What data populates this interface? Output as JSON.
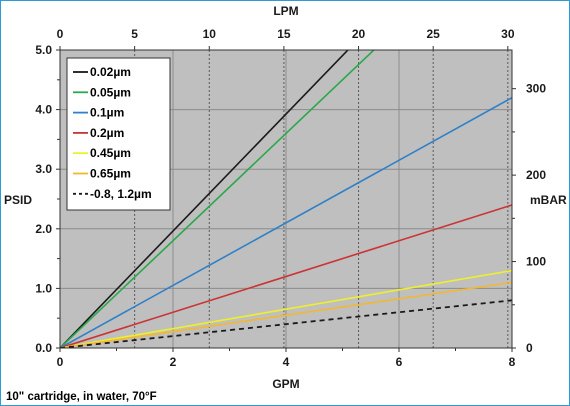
{
  "chart_data": {
    "type": "line",
    "x_bottom_label": "GPM",
    "x_top_label": "LPM",
    "y_left_label": "PSID",
    "y_right_label": "mBAR",
    "xlim": [
      0,
      8
    ],
    "ylim": [
      0,
      5
    ],
    "x_ticks": [
      "0",
      "2",
      "4",
      "6",
      "8"
    ],
    "y_ticks": [
      "0.0",
      "1.0",
      "2.0",
      "3.0",
      "4.0",
      "5.0"
    ],
    "top_ticks": [
      {
        "label": "0",
        "value": 0
      },
      {
        "label": "5",
        "value": 5
      },
      {
        "label": "10",
        "value": 10
      },
      {
        "label": "15",
        "value": 15
      },
      {
        "label": "20",
        "value": 20
      },
      {
        "label": "25",
        "value": 25
      },
      {
        "label": "30",
        "value": 30
      }
    ],
    "top_scale": {
      "lpm_per_gpm": 3.785
    },
    "right_ticks": [
      {
        "label": "0",
        "value": 0
      },
      {
        "label": "100",
        "value": 100
      },
      {
        "label": "200",
        "value": 200
      },
      {
        "label": "300",
        "value": 300
      }
    ],
    "right_scale": {
      "mbar_per_psi": 68.95
    },
    "grid": true,
    "plot_bg": "#bfbfbf",
    "legend_position": "top-left",
    "series": [
      {
        "name": "0.02µm",
        "color": "#1a1a1a",
        "dashed": false,
        "x": [
          0,
          8
        ],
        "y": [
          0,
          7.85
        ]
      },
      {
        "name": "0.05µm",
        "color": "#2aa84a",
        "dashed": false,
        "x": [
          0,
          8
        ],
        "y": [
          0,
          7.2
        ]
      },
      {
        "name": "0.1µm",
        "color": "#2f80c8",
        "dashed": false,
        "x": [
          0,
          8
        ],
        "y": [
          0,
          4.2
        ]
      },
      {
        "name": "0.2µm",
        "color": "#cc3333",
        "dashed": false,
        "x": [
          0,
          8
        ],
        "y": [
          0,
          2.4
        ]
      },
      {
        "name": "0.45µm",
        "color": "#f0f02a",
        "dashed": false,
        "x": [
          0,
          8
        ],
        "y": [
          0,
          1.3
        ]
      },
      {
        "name": "0.65µm",
        "color": "#f2b830",
        "dashed": false,
        "x": [
          0,
          8
        ],
        "y": [
          0,
          1.1
        ]
      },
      {
        "name": "-0.8, 1.2µm",
        "color": "#1a1a1a",
        "dashed": true,
        "x": [
          0,
          8
        ],
        "y": [
          0,
          0.8
        ]
      }
    ]
  },
  "footnote": "10\" cartridge, in water, 70°F"
}
